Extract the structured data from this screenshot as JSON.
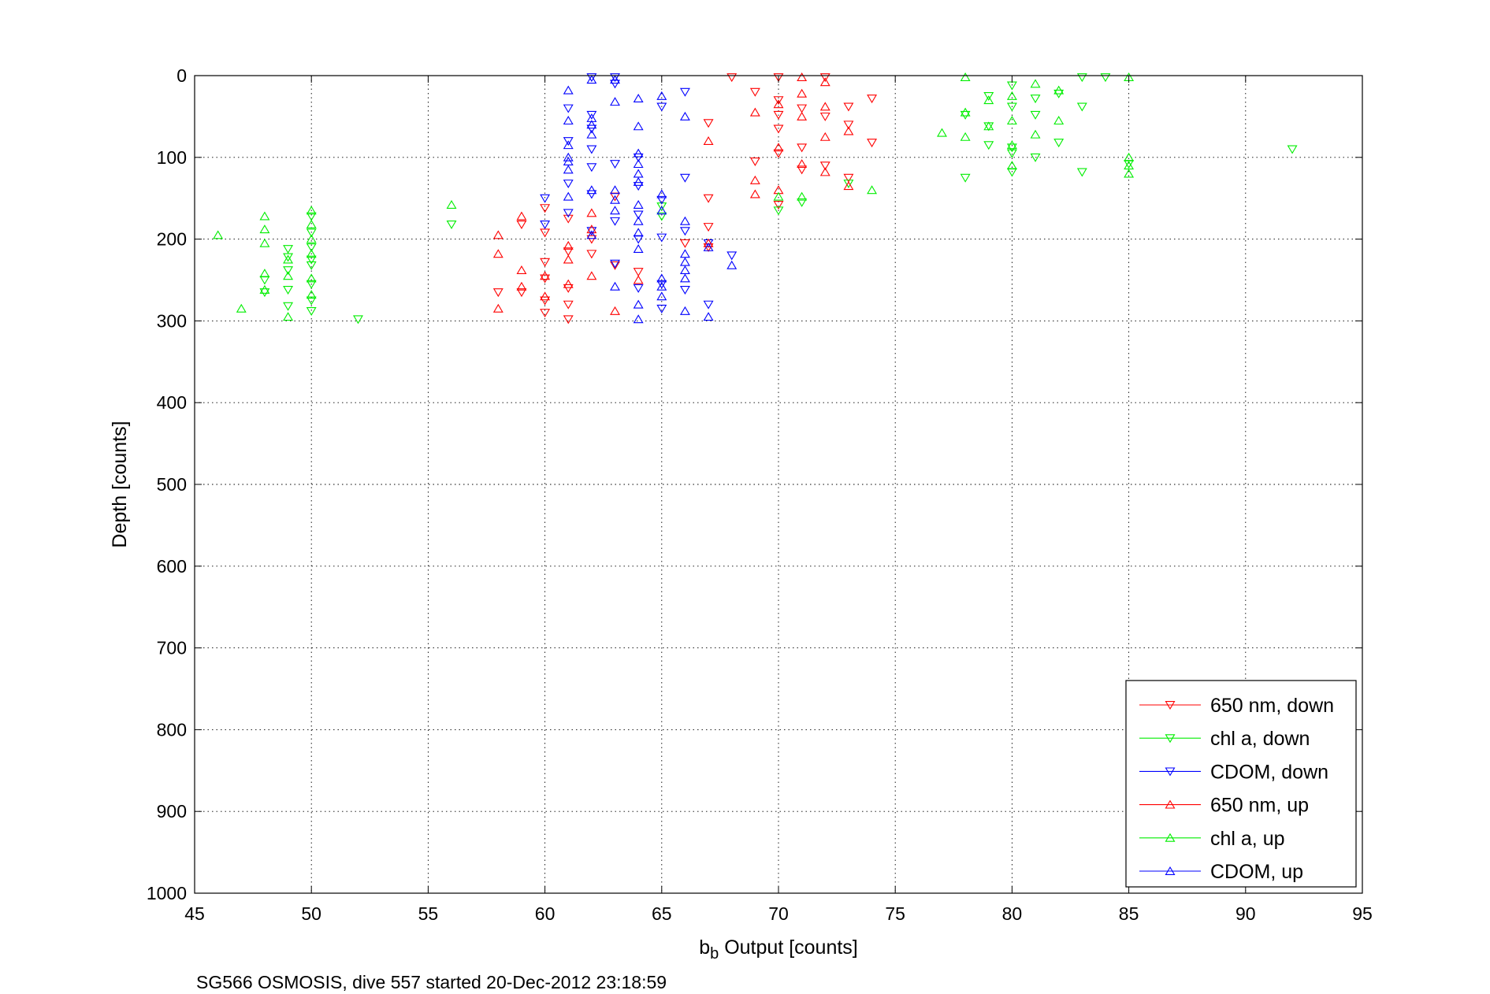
{
  "caption": "SG566 OSMOSIS, dive 557 started 20-Dec-2012 23:18:59",
  "chart_data": {
    "type": "scatter",
    "title": "",
    "xlabel_main": "b",
    "xlabel_sub": "b",
    "xlabel_rest": " Output [counts]",
    "ylabel": "Depth [counts]",
    "xlim": [
      45,
      95
    ],
    "ylim": [
      0,
      1000
    ],
    "y_reversed": true,
    "grid": true,
    "legend_position": "bottom-right",
    "x_ticks": [
      "45",
      "50",
      "55",
      "60",
      "65",
      "70",
      "75",
      "80",
      "85",
      "90",
      "95"
    ],
    "y_ticks": [
      "0",
      "100",
      "200",
      "300",
      "400",
      "500",
      "600",
      "700",
      "800",
      "900",
      "1000"
    ],
    "series": [
      {
        "name": "650 nm, down",
        "color": "#ff0000",
        "marker": "triangle-down",
        "points": [
          [
            68,
            2
          ],
          [
            70,
            2
          ],
          [
            72,
            2
          ],
          [
            69,
            20
          ],
          [
            70,
            30
          ],
          [
            71,
            40
          ],
          [
            72,
            50
          ],
          [
            74,
            28
          ],
          [
            73,
            38
          ],
          [
            70,
            48
          ],
          [
            73,
            60
          ],
          [
            70,
            65
          ],
          [
            67,
            58
          ],
          [
            71,
            88
          ],
          [
            70,
            95
          ],
          [
            74,
            82
          ],
          [
            69,
            105
          ],
          [
            71,
            115
          ],
          [
            72,
            110
          ],
          [
            73,
            125
          ],
          [
            70,
            158
          ],
          [
            67,
            150
          ],
          [
            67,
            185
          ],
          [
            63,
            148
          ],
          [
            61,
            175
          ],
          [
            62,
            200
          ],
          [
            60,
            162
          ],
          [
            59,
            182
          ],
          [
            60,
            192
          ],
          [
            61,
            215
          ],
          [
            62,
            218
          ],
          [
            63,
            232
          ],
          [
            60,
            228
          ],
          [
            61,
            260
          ],
          [
            60,
            248
          ],
          [
            60,
            275
          ],
          [
            59,
            265
          ],
          [
            60,
            290
          ],
          [
            61,
            298
          ],
          [
            58,
            265
          ],
          [
            61,
            280
          ],
          [
            66,
            205
          ],
          [
            67,
            210
          ],
          [
            64,
            240
          ]
        ]
      },
      {
        "name": "chl a, down",
        "color": "#00ee00",
        "marker": "triangle-down",
        "points": [
          [
            83,
            2
          ],
          [
            84,
            2
          ],
          [
            80,
            12
          ],
          [
            81,
            28
          ],
          [
            79,
            25
          ],
          [
            82,
            22
          ],
          [
            80,
            38
          ],
          [
            83,
            38
          ],
          [
            78,
            48
          ],
          [
            81,
            48
          ],
          [
            79,
            62
          ],
          [
            80,
            88
          ],
          [
            82,
            82
          ],
          [
            79,
            85
          ],
          [
            81,
            100
          ],
          [
            80,
            95
          ],
          [
            92,
            90
          ],
          [
            85,
            108
          ],
          [
            80,
            118
          ],
          [
            83,
            118
          ],
          [
            78,
            125
          ],
          [
            73,
            132
          ],
          [
            65,
            172
          ],
          [
            65,
            160
          ],
          [
            70,
            165
          ],
          [
            71,
            155
          ],
          [
            56,
            182
          ],
          [
            52,
            298
          ],
          [
            50,
            232
          ],
          [
            50,
            255
          ],
          [
            50,
            275
          ],
          [
            50,
            288
          ],
          [
            49,
            212
          ],
          [
            49,
            222
          ],
          [
            49,
            238
          ],
          [
            49,
            262
          ],
          [
            49,
            282
          ],
          [
            48,
            250
          ],
          [
            48,
            265
          ],
          [
            50,
            172
          ],
          [
            50,
            192
          ],
          [
            50,
            210
          ],
          [
            50,
            225
          ]
        ]
      },
      {
        "name": "CDOM, down",
        "color": "#0000ff",
        "marker": "triangle-down",
        "points": [
          [
            62,
            2
          ],
          [
            63,
            2
          ],
          [
            63,
            10
          ],
          [
            66,
            20
          ],
          [
            61,
            40
          ],
          [
            62,
            48
          ],
          [
            61,
            80
          ],
          [
            62,
            90
          ],
          [
            65,
            38
          ],
          [
            64,
            100
          ],
          [
            64,
            135
          ],
          [
            66,
            125
          ],
          [
            61,
            132
          ],
          [
            62,
            145
          ],
          [
            65,
            152
          ],
          [
            64,
            170
          ],
          [
            63,
            178
          ],
          [
            61,
            168
          ],
          [
            60,
            150
          ],
          [
            60,
            182
          ],
          [
            62,
            190
          ],
          [
            64,
            200
          ],
          [
            65,
            198
          ],
          [
            66,
            190
          ],
          [
            68,
            220
          ],
          [
            63,
            230
          ],
          [
            64,
            260
          ],
          [
            65,
            255
          ],
          [
            65,
            285
          ],
          [
            66,
            262
          ],
          [
            67,
            280
          ],
          [
            67,
            205
          ],
          [
            62,
            112
          ],
          [
            63,
            108
          ],
          [
            62,
            65
          ]
        ]
      },
      {
        "name": "650 nm, up",
        "color": "#ff0000",
        "marker": "triangle-up",
        "points": [
          [
            71,
            2
          ],
          [
            72,
            8
          ],
          [
            71,
            22
          ],
          [
            70,
            35
          ],
          [
            69,
            45
          ],
          [
            71,
            50
          ],
          [
            72,
            38
          ],
          [
            73,
            68
          ],
          [
            72,
            75
          ],
          [
            70,
            88
          ],
          [
            71,
            108
          ],
          [
            72,
            118
          ],
          [
            70,
            140
          ],
          [
            69,
            128
          ],
          [
            69,
            145
          ],
          [
            73,
            135
          ],
          [
            67,
            80
          ],
          [
            67,
            205
          ],
          [
            64,
            250
          ],
          [
            63,
            288
          ],
          [
            62,
            245
          ],
          [
            61,
            255
          ],
          [
            61,
            208
          ],
          [
            61,
            225
          ],
          [
            62,
            188
          ],
          [
            62,
            168
          ],
          [
            60,
            245
          ],
          [
            60,
            270
          ],
          [
            59,
            238
          ],
          [
            59,
            258
          ],
          [
            58,
            195
          ],
          [
            58,
            285
          ],
          [
            59,
            172
          ],
          [
            58,
            218
          ]
        ]
      },
      {
        "name": "chl a, up",
        "color": "#00ee00",
        "marker": "triangle-up",
        "points": [
          [
            85,
            2
          ],
          [
            85,
            100
          ],
          [
            85,
            110
          ],
          [
            85,
            120
          ],
          [
            78,
            2
          ],
          [
            80,
            25
          ],
          [
            81,
            10
          ],
          [
            82,
            18
          ],
          [
            82,
            55
          ],
          [
            80,
            55
          ],
          [
            79,
            30
          ],
          [
            79,
            62
          ],
          [
            80,
            85
          ],
          [
            81,
            72
          ],
          [
            78,
            75
          ],
          [
            77,
            70
          ],
          [
            78,
            45
          ],
          [
            80,
            110
          ],
          [
            74,
            140
          ],
          [
            70,
            148
          ],
          [
            71,
            148
          ],
          [
            56,
            158
          ],
          [
            47,
            285
          ],
          [
            46,
            195
          ],
          [
            48,
            172
          ],
          [
            48,
            188
          ],
          [
            48,
            205
          ],
          [
            48,
            242
          ],
          [
            48,
            262
          ],
          [
            49,
            295
          ],
          [
            50,
            165
          ],
          [
            50,
            182
          ],
          [
            50,
            200
          ],
          [
            50,
            218
          ],
          [
            50,
            248
          ],
          [
            50,
            268
          ],
          [
            49,
            225
          ],
          [
            49,
            245
          ]
        ]
      },
      {
        "name": "CDOM, up",
        "color": "#0000ff",
        "marker": "triangle-up",
        "points": [
          [
            61,
            18
          ],
          [
            62,
            5
          ],
          [
            63,
            5
          ],
          [
            62,
            52
          ],
          [
            62,
            60
          ],
          [
            62,
            72
          ],
          [
            61,
            55
          ],
          [
            63,
            32
          ],
          [
            64,
            28
          ],
          [
            65,
            25
          ],
          [
            66,
            50
          ],
          [
            64,
            62
          ],
          [
            64,
            95
          ],
          [
            64,
            108
          ],
          [
            64,
            120
          ],
          [
            64,
            130
          ],
          [
            63,
            140
          ],
          [
            63,
            152
          ],
          [
            63,
            165
          ],
          [
            61,
            85
          ],
          [
            61,
            100
          ],
          [
            61,
            115
          ],
          [
            62,
            140
          ],
          [
            65,
            145
          ],
          [
            65,
            165
          ],
          [
            64,
            158
          ],
          [
            64,
            178
          ],
          [
            64,
            192
          ],
          [
            64,
            212
          ],
          [
            62,
            195
          ],
          [
            66,
            178
          ],
          [
            66,
            218
          ],
          [
            66,
            228
          ],
          [
            66,
            238
          ],
          [
            66,
            248
          ],
          [
            65,
            248
          ],
          [
            65,
            258
          ],
          [
            65,
            270
          ],
          [
            64,
            280
          ],
          [
            64,
            298
          ],
          [
            66,
            288
          ],
          [
            67,
            295
          ],
          [
            67,
            210
          ],
          [
            68,
            232
          ],
          [
            63,
            258
          ],
          [
            61,
            148
          ],
          [
            61,
            105
          ]
        ]
      }
    ]
  }
}
